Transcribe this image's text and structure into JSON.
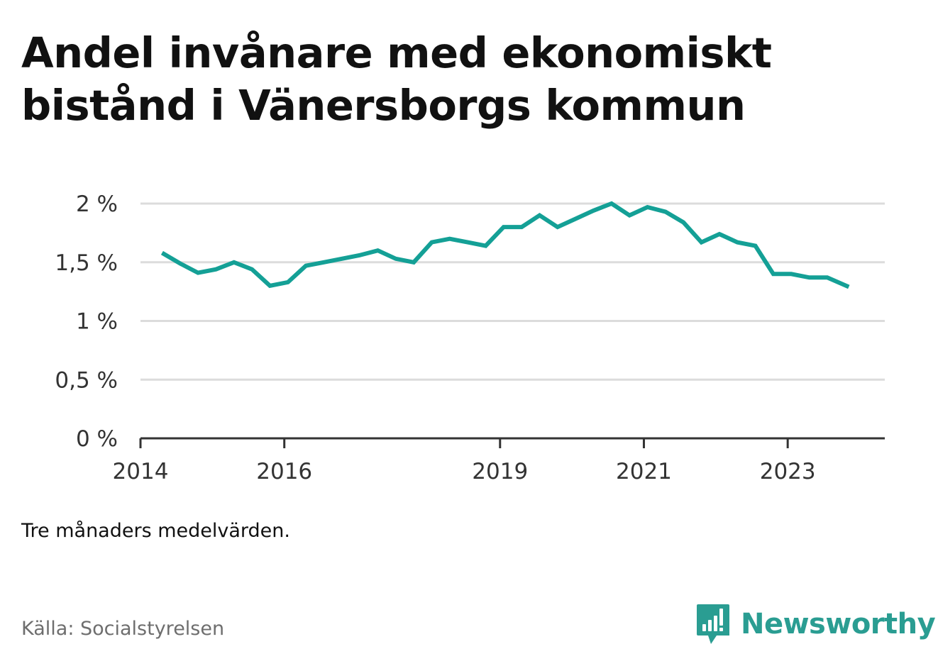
{
  "title": "Andel invånare med ekonomiskt bistånd i Vänersborgs kommun",
  "note": "Tre månaders medelvärden.",
  "source": "Källa: Socialstyrelsen",
  "brand": {
    "name": "Newsworthy",
    "icon": "newsworthy-logo-icon",
    "color": "#2a9d92"
  },
  "chart_data": {
    "type": "line",
    "title": "Andel invånare med ekonomiskt bistånd i Vänersborgs kommun",
    "xlabel": "",
    "ylabel": "",
    "xlim": [
      2014.0,
      2024.35
    ],
    "ylim": [
      0,
      2
    ],
    "x_ticks": [
      {
        "value": 2014,
        "label": "2014"
      },
      {
        "value": 2016,
        "label": "2016"
      },
      {
        "value": 2019,
        "label": "2019"
      },
      {
        "value": 2021,
        "label": "2021"
      },
      {
        "value": 2023,
        "label": "2023"
      }
    ],
    "y_ticks": [
      {
        "value": 0,
        "label": "0 %"
      },
      {
        "value": 0.5,
        "label": "0,5 %"
      },
      {
        "value": 1,
        "label": "1 %"
      },
      {
        "value": 1.5,
        "label": "1,5 %"
      },
      {
        "value": 2,
        "label": "2 %"
      }
    ],
    "grid": true,
    "line_color": "#14a096",
    "series": [
      {
        "x": [
          2014.3,
          2014.55,
          2014.8,
          2015.05,
          2015.3,
          2015.55,
          2015.8,
          2016.05,
          2016.3,
          2016.55,
          2016.8,
          2017.05,
          2017.3,
          2017.55,
          2017.8,
          2018.05,
          2018.3,
          2018.55,
          2018.8,
          2019.05,
          2019.3,
          2019.55,
          2019.8,
          2020.05,
          2020.3,
          2020.55,
          2020.8,
          2021.05,
          2021.3,
          2021.55,
          2021.8,
          2022.05,
          2022.3,
          2022.55,
          2022.8,
          2023.05,
          2023.3,
          2023.55,
          2023.85
        ],
        "values": [
          1.58,
          1.49,
          1.41,
          1.44,
          1.5,
          1.44,
          1.3,
          1.33,
          1.47,
          1.5,
          1.53,
          1.56,
          1.6,
          1.53,
          1.5,
          1.67,
          1.7,
          1.67,
          1.64,
          1.8,
          1.8,
          1.9,
          1.8,
          1.87,
          1.94,
          2.0,
          1.9,
          1.97,
          1.93,
          1.84,
          1.67,
          1.74,
          1.67,
          1.64,
          1.4,
          1.4,
          1.37,
          1.37,
          1.29
        ]
      }
    ]
  }
}
